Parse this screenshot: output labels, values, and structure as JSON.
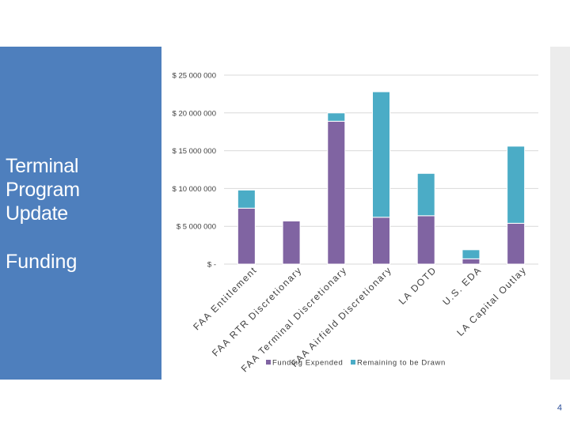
{
  "slide": {
    "title": "Terminal\nProgram\nUpdate",
    "subtitle": "Funding",
    "page_number": "4"
  },
  "colors": {
    "panel": "#4e7fbd",
    "funding_expended": "#8064a2",
    "remaining": "#4bacc6",
    "gridline": "#d9d9d9"
  },
  "chart_data": {
    "type": "bar",
    "stacked": true,
    "title": "",
    "xlabel": "",
    "ylabel": "",
    "ylim": [
      0,
      25000000
    ],
    "y_ticks": [
      0,
      5000000,
      10000000,
      15000000,
      20000000,
      25000000
    ],
    "y_tick_labels": [
      "$ -",
      "$ 5 000 000",
      "$ 10 000 000",
      "$ 15 000 000",
      "$ 20 000 000",
      "$ 25 000 000"
    ],
    "grid": true,
    "legend_position": "bottom",
    "categories": [
      "FAA Entitlement",
      "FAA RTR Discretionary",
      "FAA Terminal Discretionary",
      "FAA Airfield Discretionary",
      "LA DOTD",
      "U.S. EDA",
      "LA Capital Outlay"
    ],
    "series": [
      {
        "name": "Funding Expended",
        "values": [
          7400000,
          5700000,
          18900000,
          6200000,
          6400000,
          700000,
          5400000
        ]
      },
      {
        "name": "Remaining to be Drawn",
        "values": [
          2400000,
          0,
          1100000,
          16600000,
          5600000,
          1200000,
          10200000
        ]
      }
    ]
  }
}
